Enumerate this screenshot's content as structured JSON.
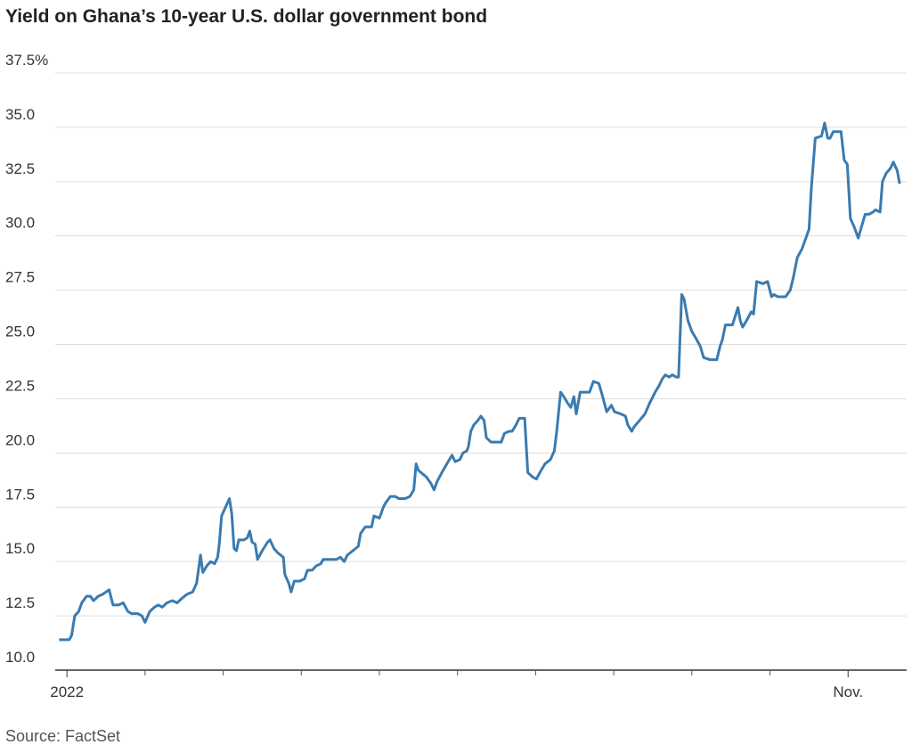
{
  "chart_data": {
    "type": "line",
    "title": "Yield on Ghana’s 10-year U.S. dollar government bond",
    "source": "Source: FactSet",
    "x": [
      -0.1,
      0.03,
      0.06,
      0.1,
      0.15,
      0.19,
      0.25,
      0.3,
      0.34,
      0.4,
      0.46,
      0.54,
      0.59,
      0.66,
      0.72,
      0.78,
      0.83,
      0.91,
      0.96,
      1.0,
      1.06,
      1.12,
      1.17,
      1.22,
      1.28,
      1.35,
      1.41,
      1.47,
      1.54,
      1.61,
      1.66,
      1.71,
      1.74,
      1.79,
      1.84,
      1.89,
      1.93,
      1.95,
      1.98,
      2.08,
      2.11,
      2.14,
      2.17,
      2.2,
      2.27,
      2.31,
      2.34,
      2.37,
      2.41,
      2.44,
      2.5,
      2.57,
      2.6,
      2.65,
      2.7,
      2.77,
      2.79,
      2.84,
      2.87,
      2.91,
      2.98,
      3.04,
      3.08,
      3.14,
      3.19,
      3.25,
      3.28,
      3.36,
      3.45,
      3.5,
      3.55,
      3.59,
      3.66,
      3.73,
      3.76,
      3.82,
      3.9,
      3.93,
      4.0,
      4.05,
      4.08,
      4.14,
      4.2,
      4.25,
      4.33,
      4.39,
      4.44,
      4.47,
      4.5,
      4.6,
      4.66,
      4.7,
      4.74,
      4.8,
      4.88,
      4.93,
      4.97,
      5.03,
      5.07,
      5.12,
      5.14,
      5.17,
      5.21,
      5.26,
      5.3,
      5.34,
      5.37,
      5.43,
      5.5,
      5.56,
      5.6,
      5.66,
      5.7,
      5.75,
      5.79,
      5.86,
      5.9,
      5.96,
      6.01,
      6.07,
      6.12,
      6.19,
      6.24,
      6.27,
      6.32,
      6.36,
      6.41,
      6.45,
      6.49,
      6.52,
      6.57,
      6.66,
      6.69,
      6.74,
      6.81,
      6.85,
      6.91,
      6.97,
      7.01,
      7.09,
      7.15,
      7.18,
      7.23,
      7.26,
      7.33,
      7.4,
      7.46,
      7.53,
      7.58,
      7.62,
      7.66,
      7.71,
      7.75,
      7.8,
      7.83,
      7.87,
      7.9,
      7.95,
      8.0,
      8.05,
      8.11,
      8.15,
      8.23,
      8.32,
      8.36,
      8.39,
      8.43,
      8.52,
      8.59,
      8.62,
      8.65,
      8.7,
      8.76,
      8.79,
      8.83,
      8.91,
      8.97,
      9.02,
      9.05,
      9.1,
      9.2,
      9.26,
      9.3,
      9.35,
      9.41,
      9.46,
      9.5,
      9.53,
      9.58,
      9.66,
      9.7,
      9.74,
      9.77,
      9.81,
      9.91,
      9.95,
      9.99,
      10.03,
      10.08,
      10.13,
      10.17,
      10.22,
      10.27,
      10.32,
      10.35,
      10.41,
      10.44,
      10.49,
      10.54,
      10.58,
      10.63,
      10.66
    ],
    "series": [
      {
        "color": "#3a7bb0",
        "values": [
          11.4,
          11.4,
          11.6,
          12.5,
          12.7,
          13.1,
          13.4,
          13.4,
          13.2,
          13.4,
          13.5,
          13.7,
          13.0,
          13.0,
          13.1,
          12.7,
          12.6,
          12.6,
          12.5,
          12.2,
          12.7,
          12.9,
          13.0,
          12.9,
          13.1,
          13.2,
          13.1,
          13.3,
          13.5,
          13.6,
          14.0,
          15.3,
          14.5,
          14.8,
          15.0,
          14.9,
          15.2,
          15.8,
          17.1,
          17.9,
          17.2,
          15.6,
          15.5,
          16.0,
          16.0,
          16.1,
          16.4,
          15.9,
          15.8,
          15.1,
          15.5,
          15.9,
          16.0,
          15.6,
          15.4,
          15.2,
          14.4,
          14.0,
          13.6,
          14.1,
          14.1,
          14.2,
          14.6,
          14.6,
          14.8,
          14.9,
          15.1,
          15.1,
          15.1,
          15.2,
          15.0,
          15.3,
          15.5,
          15.7,
          16.3,
          16.6,
          16.6,
          17.1,
          17.0,
          17.5,
          17.7,
          18.0,
          18.0,
          17.9,
          17.9,
          18.0,
          18.3,
          19.5,
          19.2,
          18.9,
          18.6,
          18.3,
          18.7,
          19.1,
          19.6,
          19.9,
          19.6,
          19.7,
          20.0,
          20.1,
          20.3,
          21.0,
          21.3,
          21.5,
          21.7,
          21.5,
          20.7,
          20.5,
          20.5,
          20.5,
          20.9,
          21.0,
          21.0,
          21.3,
          21.6,
          21.6,
          19.1,
          18.9,
          18.8,
          19.2,
          19.5,
          19.7,
          20.1,
          21.0,
          22.8,
          22.6,
          22.3,
          22.1,
          22.6,
          21.8,
          22.8,
          22.8,
          22.8,
          23.3,
          23.2,
          22.7,
          21.9,
          22.2,
          21.9,
          21.8,
          21.7,
          21.3,
          21.0,
          21.2,
          21.5,
          21.8,
          22.3,
          22.8,
          23.1,
          23.4,
          23.6,
          23.5,
          23.6,
          23.5,
          23.5,
          27.3,
          27.1,
          26.1,
          25.6,
          25.3,
          24.9,
          24.4,
          24.3,
          24.3,
          24.9,
          25.2,
          25.9,
          25.9,
          26.7,
          26.1,
          25.8,
          26.1,
          26.5,
          26.4,
          27.9,
          27.8,
          27.9,
          27.2,
          27.3,
          27.2,
          27.2,
          27.5,
          28.1,
          29.0,
          29.4,
          29.9,
          30.3,
          32.2,
          34.5,
          34.6,
          35.2,
          34.5,
          34.5,
          34.8,
          34.8,
          33.5,
          33.3,
          30.8,
          30.4,
          29.9,
          30.4,
          31.0,
          31.0,
          31.1,
          31.2,
          31.1,
          32.5,
          32.9,
          33.1,
          33.4,
          33.0,
          32.4
        ]
      }
    ],
    "xlim": [
      -0.15,
      10.75
    ],
    "xticks": [
      {
        "value": 0,
        "label": "2022"
      },
      {
        "value": 10,
        "label": "Nov."
      }
    ],
    "x_minor_ticks": [
      1,
      2,
      3,
      4,
      5,
      6,
      7,
      8,
      9
    ],
    "ylim": [
      10,
      37.5
    ],
    "yticks": [
      {
        "value": 10,
        "label": "10.0"
      },
      12.5,
      {
        "value": 15,
        "label": "15.0"
      },
      17.5,
      {
        "value": 20,
        "label": "20.0"
      },
      22.5,
      {
        "value": 25,
        "label": "25.0"
      },
      27.5,
      {
        "value": 30,
        "label": "30.0"
      },
      32.5,
      {
        "value": 35,
        "label": "35.0"
      },
      {
        "value": 37.5,
        "label": "37.5%"
      }
    ],
    "grid": true
  }
}
